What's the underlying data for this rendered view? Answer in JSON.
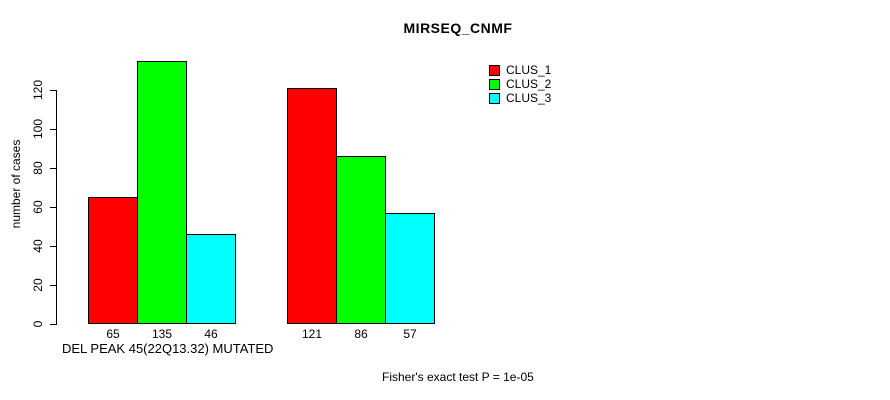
{
  "title": "MIRSEQ_CNMF",
  "colors": {
    "clus1": "#FF0000",
    "clus2": "#00FF00",
    "clus3": "#00FFFF",
    "axis": "#000000",
    "background": "#FFFFFF"
  },
  "chart_data": {
    "type": "bar",
    "title": "MIRSEQ_CNMF",
    "xlabel": "DEL PEAK 45(22Q13.32) MUTATED",
    "ylabel": "number of cases",
    "categories": [
      "",
      ""
    ],
    "series": [
      {
        "name": "CLUS_1",
        "color": "#FF0000",
        "values": [
          65,
          121
        ]
      },
      {
        "name": "CLUS_2",
        "color": "#00FF00",
        "values": [
          135,
          86
        ]
      },
      {
        "name": "CLUS_3",
        "color": "#00FFFF",
        "values": [
          46,
          57
        ]
      }
    ],
    "bar_value_labels_shown": true,
    "yticks": [
      0,
      20,
      40,
      60,
      80,
      100,
      120
    ],
    "ylim": [
      0,
      135
    ],
    "grid": false,
    "legend_position": "top-right",
    "annotation": "Fisher's exact test P = 1e-05"
  }
}
